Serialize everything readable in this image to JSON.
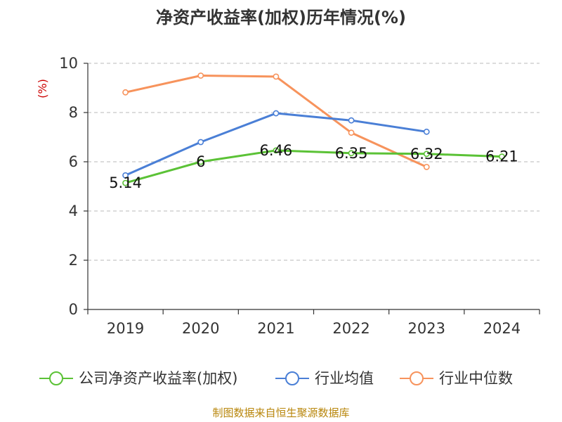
{
  "chart_data": {
    "type": "line",
    "title": "净资产收益率(加权)历年情况(%)",
    "unit_label": "(%)",
    "categories": [
      "2019",
      "2020",
      "2021",
      "2022",
      "2023",
      "2024"
    ],
    "ylim": [
      0,
      10
    ],
    "yticks": [
      0,
      2,
      4,
      6,
      8,
      10
    ],
    "grid": true,
    "legend_position": "bottom",
    "series": [
      {
        "name": "公司净资产收益率(加权)",
        "color": "#5bc236",
        "values": [
          5.14,
          6,
          6.46,
          6.35,
          6.32,
          6.21
        ],
        "labels": [
          "5.14",
          "6",
          "6.46",
          "6.35",
          "6.32",
          "6.21"
        ]
      },
      {
        "name": "行业均值",
        "color": "#4a7fd6",
        "values": [
          5.45,
          6.8,
          7.97,
          7.68,
          7.22,
          null
        ]
      },
      {
        "name": "行业中位数",
        "color": "#f7935c",
        "values": [
          8.82,
          9.5,
          9.46,
          7.18,
          5.79,
          null
        ]
      }
    ],
    "source": "制图数据来自恒生聚源数据库"
  }
}
